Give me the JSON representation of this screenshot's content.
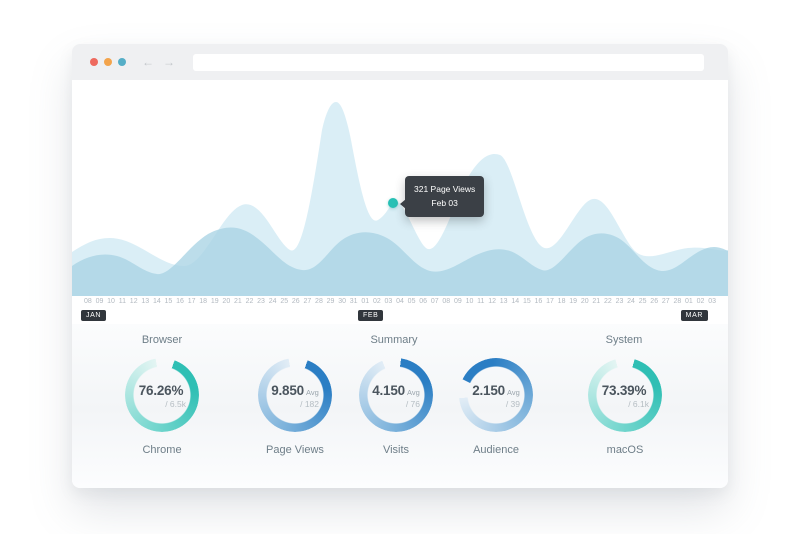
{
  "window": {
    "traffic_lights": [
      {
        "name": "traffic-light-red",
        "color": "#ee6a5f"
      },
      {
        "name": "traffic-light-orange",
        "color": "#f3a44c"
      },
      {
        "name": "traffic-light-blue",
        "color": "#55aec7"
      }
    ],
    "back_arrow": "←",
    "forward_arrow": "→",
    "url_value": ""
  },
  "chart": {
    "type": "area",
    "tooltip": {
      "line1": "321 Page Views",
      "line2": "Feb 03"
    },
    "highlighted_point": {
      "date": "Feb 03",
      "metric": "Page Views",
      "value": 321
    },
    "months": [
      {
        "label": "JAN"
      },
      {
        "label": "FEB"
      },
      {
        "label": "MAR"
      }
    ],
    "ticks": [
      "08",
      "09",
      "10",
      "11",
      "12",
      "13",
      "14",
      "15",
      "16",
      "17",
      "18",
      "19",
      "20",
      "21",
      "22",
      "23",
      "24",
      "25",
      "26",
      "27",
      "28",
      "29",
      "30",
      "31",
      "01",
      "02",
      "03",
      "04",
      "05",
      "06",
      "07",
      "08",
      "09",
      "10",
      "11",
      "12",
      "13",
      "14",
      "15",
      "16",
      "17",
      "18",
      "19",
      "20",
      "21",
      "22",
      "23",
      "24",
      "25",
      "26",
      "27",
      "28",
      "01",
      "02",
      "03"
    ]
  },
  "summary": {
    "group_titles": [
      {
        "title": "Browser"
      },
      {
        "title": "Summary"
      },
      {
        "title": "System"
      }
    ],
    "colors": {
      "teal": {
        "strong": "#2fbfb4",
        "mid": "#7ad8d0",
        "pale": "#e4f5f3"
      },
      "blue": {
        "strong": "#2b7ec4",
        "mid": "#7fb4dc",
        "pale": "#e2edf6"
      }
    },
    "donuts": [
      {
        "value": "76.26%",
        "unit": "",
        "sub": "/ 6.5k",
        "label": "Chrome",
        "color": "teal",
        "arc": {
          "start_deg": 20,
          "sweep_deg": 330
        }
      },
      {
        "value": "9.850",
        "unit": "Avg",
        "sub": "/ 182",
        "label": "Page Views",
        "color": "blue",
        "arc": {
          "start_deg": 20,
          "sweep_deg": 330
        }
      },
      {
        "value": "4.150",
        "unit": "Avg",
        "sub": "/ 76",
        "label": "Visits",
        "color": "blue",
        "arc": {
          "start_deg": 8,
          "sweep_deg": 330
        }
      },
      {
        "value": "2.150",
        "unit": "Avg",
        "sub": "/ 39",
        "label": "Audience",
        "color": "blue",
        "arc": {
          "start_deg": -65,
          "sweep_deg": 330
        }
      },
      {
        "value": "73.39%",
        "unit": "",
        "sub": "/ 6.1k",
        "label": "macOS",
        "color": "teal",
        "arc": {
          "start_deg": 15,
          "sweep_deg": 330
        }
      }
    ]
  }
}
